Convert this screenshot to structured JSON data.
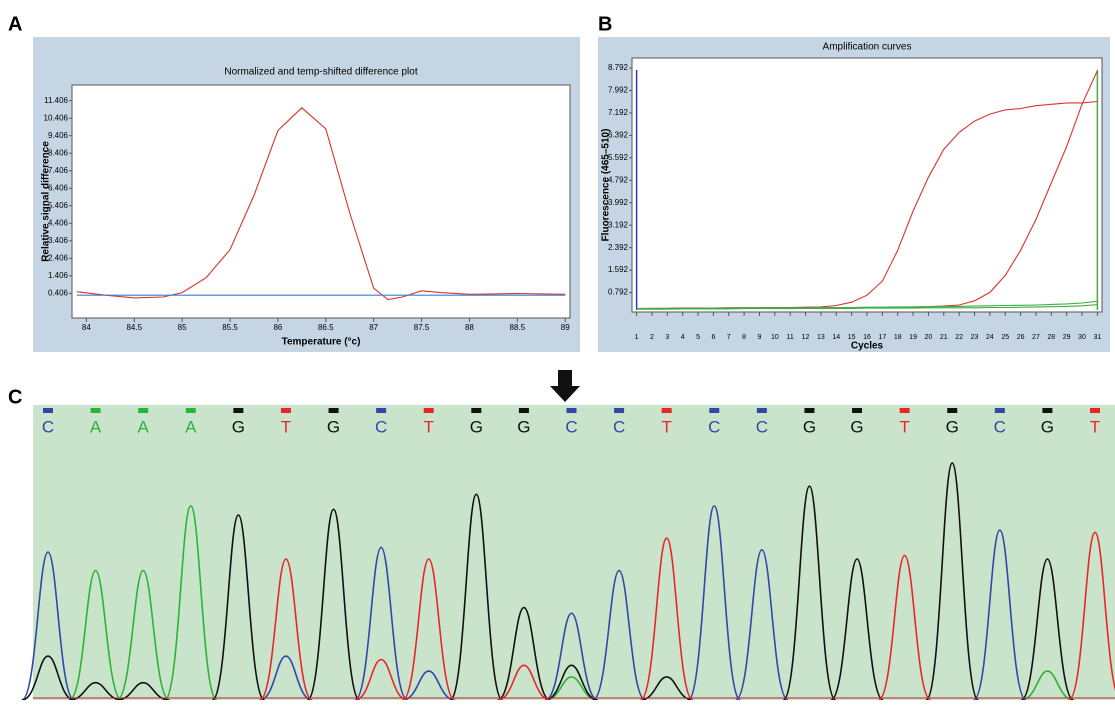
{
  "chart_data": [
    {
      "type": "line",
      "panel": "A",
      "title": "Normalized and temp-shifted difference plot",
      "x_label": "Temperature (°c)",
      "y_label": "Relative signal difference",
      "xlim": [
        83.85,
        89.05
      ],
      "xticks": [
        84,
        84.5,
        85,
        85.5,
        86,
        86.5,
        87,
        87.5,
        88,
        88.5,
        89
      ],
      "ylim": [
        -1.0,
        12.3
      ],
      "yticks": [
        0.406,
        1.406,
        2.406,
        3.406,
        4.406,
        5.406,
        6.406,
        7.406,
        8.406,
        9.406,
        10.406,
        11.406
      ],
      "series": [
        {
          "color": "#d9342b",
          "x": [
            83.9,
            84.2,
            84.5,
            84.8,
            85,
            85.25,
            85.5,
            85.75,
            86,
            86.25,
            86.5,
            86.75,
            87,
            87.15,
            87.3,
            87.5,
            87.7,
            88,
            88.5,
            89
          ],
          "values": [
            0.5,
            0.3,
            0.15,
            0.2,
            0.45,
            1.3,
            2.9,
            6.0,
            9.7,
            11.0,
            9.8,
            5.0,
            0.7,
            0.05,
            0.2,
            0.55,
            0.45,
            0.35,
            0.4,
            0.35
          ]
        },
        {
          "color": "#3a7fd5",
          "x": [
            83.9,
            89
          ],
          "values": [
            0.3,
            0.3
          ]
        }
      ]
    },
    {
      "type": "line",
      "panel": "B",
      "title": "Amplification curves",
      "x_label": "Cycles",
      "y_label": "Fluorescence (465–510)",
      "xlim": [
        0.7,
        31.3
      ],
      "xticks": [
        1,
        2,
        3,
        4,
        5,
        6,
        7,
        8,
        9,
        10,
        11,
        12,
        13,
        14,
        15,
        16,
        17,
        18,
        19,
        20,
        21,
        22,
        23,
        24,
        25,
        26,
        27,
        28,
        29,
        30,
        31
      ],
      "ylim": [
        0.1,
        9.15
      ],
      "yticks": [
        0.792,
        1.592,
        2.392,
        3.192,
        3.992,
        4.792,
        5.592,
        6.392,
        7.192,
        7.992,
        8.792
      ],
      "x": [
        1,
        2,
        3,
        4,
        5,
        6,
        7,
        8,
        9,
        10,
        11,
        12,
        13,
        14,
        15,
        16,
        17,
        18,
        19,
        20,
        21,
        22,
        23,
        24,
        25,
        26,
        27,
        28,
        29,
        30,
        31
      ],
      "series": [
        {
          "color": "#d9342b",
          "values": [
            0.22,
            0.23,
            0.23,
            0.24,
            0.24,
            0.24,
            0.25,
            0.25,
            0.25,
            0.26,
            0.26,
            0.27,
            0.28,
            0.33,
            0.45,
            0.7,
            1.2,
            2.3,
            3.7,
            4.9,
            5.9,
            6.5,
            6.9,
            7.15,
            7.3,
            7.35,
            7.45,
            7.5,
            7.55,
            7.55,
            7.6
          ]
        },
        {
          "color": "#d9342b",
          "values": [
            0.22,
            0.23,
            0.23,
            0.24,
            0.24,
            0.24,
            0.25,
            0.25,
            0.25,
            0.25,
            0.25,
            0.25,
            0.25,
            0.25,
            0.25,
            0.26,
            0.26,
            0.27,
            0.28,
            0.29,
            0.31,
            0.35,
            0.5,
            0.8,
            1.4,
            2.3,
            3.4,
            4.7,
            6.0,
            7.5,
            8.7
          ]
        },
        {
          "color": "#3cb043",
          "values": [
            0.22,
            0.22,
            0.23,
            0.23,
            0.23,
            0.24,
            0.24,
            0.24,
            0.25,
            0.25,
            0.25,
            0.25,
            0.26,
            0.26,
            0.26,
            0.27,
            0.27,
            0.28,
            0.28,
            0.29,
            0.29,
            0.3,
            0.31,
            0.32,
            0.33,
            0.34,
            0.35,
            0.37,
            0.39,
            0.42,
            0.48
          ]
        },
        {
          "color": "#3cb043",
          "values": [
            0.2,
            0.2,
            0.2,
            0.21,
            0.21,
            0.21,
            0.21,
            0.22,
            0.22,
            0.22,
            0.22,
            0.23,
            0.23,
            0.23,
            0.23,
            0.24,
            0.24,
            0.24,
            0.24,
            0.25,
            0.25,
            0.25,
            0.25,
            0.26,
            0.26,
            0.27,
            0.28,
            0.29,
            0.3,
            0.32,
            0.36
          ]
        }
      ]
    },
    {
      "type": "chromatogram",
      "panel": "C",
      "bases": [
        "C",
        "A",
        "A",
        "A",
        "G",
        "T",
        "G",
        "C",
        "T",
        "G",
        "G",
        "C",
        "C",
        "T",
        "C",
        "C",
        "G",
        "G",
        "T",
        "G",
        "C",
        "G",
        "T"
      ],
      "ylim": [
        0,
        225
      ],
      "series": [
        {
          "name": "A",
          "color": "#2db23a",
          "values": [
            null,
            112,
            112,
            168,
            null,
            null,
            null,
            null,
            null,
            null,
            null,
            20,
            null,
            null,
            null,
            null,
            null,
            null,
            null,
            null,
            null,
            25,
            null
          ]
        },
        {
          "name": "C",
          "color": "#3347a8",
          "values": [
            128,
            null,
            null,
            null,
            null,
            38,
            null,
            132,
            25,
            null,
            null,
            75,
            112,
            null,
            168,
            130,
            null,
            null,
            null,
            null,
            147,
            null,
            null
          ]
        },
        {
          "name": "G",
          "color": "#111111",
          "values": [
            38,
            15,
            15,
            null,
            160,
            null,
            165,
            null,
            null,
            178,
            80,
            30,
            null,
            20,
            null,
            null,
            185,
            122,
            null,
            205,
            null,
            122,
            null
          ]
        },
        {
          "name": "T",
          "color": "#e8262a",
          "values": [
            null,
            null,
            null,
            null,
            null,
            122,
            null,
            35,
            122,
            null,
            30,
            null,
            null,
            140,
            null,
            null,
            null,
            null,
            125,
            null,
            null,
            null,
            145
          ]
        }
      ]
    }
  ]
}
